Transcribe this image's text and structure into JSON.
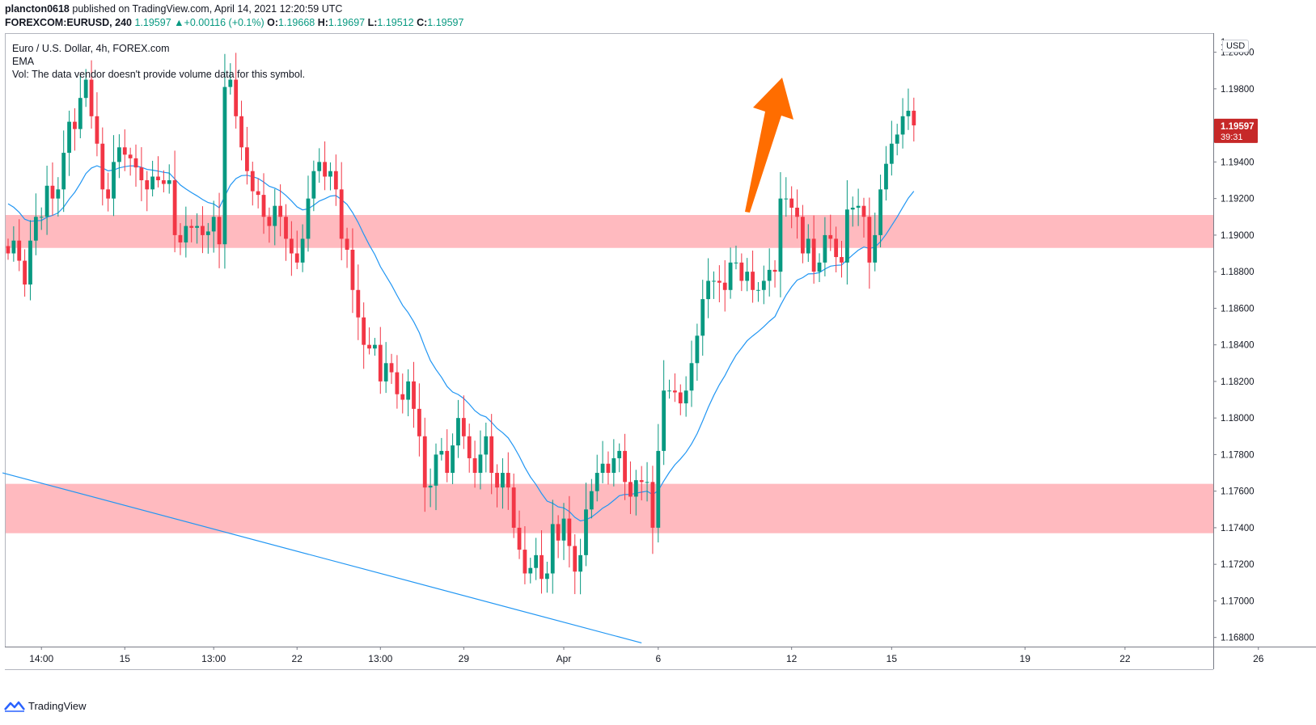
{
  "header": {
    "author": "plancton0618",
    "published_text": "published on TradingView.com, April 14, 2021 12:20:59 UTC",
    "symbol": "FOREXCOM:EURUSD, 240",
    "price": "1.19597",
    "change": "+0.00116 (+0.1%)",
    "o_label": "O:",
    "o": "1.19668",
    "h_label": "H:",
    "h": "1.19697",
    "l_label": "L:",
    "l": "1.19512",
    "c_label": "C:",
    "c": "1.19597"
  },
  "legend": {
    "title": "Euro / U.S. Dollar, 4h, FOREX.com",
    "indicator": "EMA",
    "volume_note": "Vol: The data vendor doesn't provide volume data for this symbol."
  },
  "price_axis": {
    "currency": "USD",
    "top_clipped_label": "1.",
    "last_price": "1.19597",
    "countdown": "39:31"
  },
  "footer": {
    "brand": "TradingView"
  },
  "colors": {
    "up": "#089981",
    "down": "#f23645",
    "ema": "#2196f3",
    "zone": "#ffb3b8",
    "arrow": "#ff6d00",
    "trendline": "#2196f3",
    "last_price_bg": "#c62828"
  },
  "chart_data": {
    "type": "candlestick",
    "title": "Euro / U.S. Dollar, 4h, FOREX.com",
    "ylim": [
      1.1675,
      1.201
    ],
    "y_ticks": [
      1.168,
      1.17,
      1.172,
      1.174,
      1.176,
      1.178,
      1.18,
      1.182,
      1.184,
      1.186,
      1.188,
      1.19,
      1.192,
      1.194,
      1.196,
      1.198,
      1.2
    ],
    "y_tick_labels": [
      "1.16800",
      "1.17000",
      "1.17200",
      "1.17400",
      "1.17600",
      "1.17800",
      "1.18000",
      "1.18200",
      "1.18400",
      "1.18600",
      "1.18800",
      "1.19000",
      "1.19200",
      "1.19400",
      "1.19600",
      "1.19800",
      "1.20000"
    ],
    "x_tick_labels": [
      {
        "label": "14:00",
        "bar": 6
      },
      {
        "label": "15",
        "bar": 21
      },
      {
        "label": "13:00",
        "bar": 37
      },
      {
        "label": "22",
        "bar": 52
      },
      {
        "label": "13:00",
        "bar": 67
      },
      {
        "label": "29",
        "bar": 82
      },
      {
        "label": "Apr",
        "bar": 100
      },
      {
        "label": "6",
        "bar": 117
      },
      {
        "label": "12",
        "bar": 141
      },
      {
        "label": "15",
        "bar": 159
      },
      {
        "label": "19",
        "bar": 183
      },
      {
        "label": "22",
        "bar": 201
      },
      {
        "label": "26",
        "bar": 225
      }
    ],
    "total_bar_slots": 234,
    "closes": [
      1.189,
      1.1897,
      1.1886,
      1.1873,
      1.1897,
      1.191,
      1.191,
      1.1927,
      1.192,
      1.1925,
      1.1945,
      1.1962,
      1.1958,
      1.1975,
      1.1985,
      1.1965,
      1.195,
      1.1925,
      1.192,
      1.194,
      1.1948,
      1.1944,
      1.1942,
      1.1937,
      1.193,
      1.1925,
      1.1932,
      1.193,
      1.1928,
      1.193,
      1.19,
      1.1896,
      1.1905,
      1.1904,
      1.1905,
      1.19,
      1.1902,
      1.191,
      1.1895,
      1.1981,
      1.1985,
      1.1965,
      1.1948,
      1.1935,
      1.1924,
      1.1922,
      1.191,
      1.1905,
      1.1916,
      1.191,
      1.1898,
      1.189,
      1.1885,
      1.1898,
      1.192,
      1.1935,
      1.194,
      1.1932,
      1.1935,
      1.1925,
      1.1898,
      1.1892,
      1.187,
      1.1855,
      1.184,
      1.1838,
      1.184,
      1.182,
      1.183,
      1.1825,
      1.1813,
      1.181,
      1.182,
      1.1805,
      1.179,
      1.1762,
      1.1763,
      1.178,
      1.1782,
      1.177,
      1.1785,
      1.18,
      1.179,
      1.1778,
      1.177,
      1.178,
      1.179,
      1.177,
      1.1762,
      1.177,
      1.1762,
      1.174,
      1.1728,
      1.1715,
      1.1718,
      1.1725,
      1.1712,
      1.1715,
      1.1742,
      1.1733,
      1.1745,
      1.173,
      1.1716,
      1.1725,
      1.175,
      1.176,
      1.177,
      1.1775,
      1.177,
      1.1778,
      1.1782,
      1.1765,
      1.1757,
      1.1766,
      1.1765,
      1.1765,
      1.174,
      1.1782,
      1.1815,
      1.1815,
      1.1814,
      1.1808,
      1.1815,
      1.183,
      1.1845,
      1.1865,
      1.1875,
      1.1875,
      1.1874,
      1.187,
      1.1885,
      1.1885,
      1.1875,
      1.188,
      1.187,
      1.187,
      1.1875,
      1.1881,
      1.188,
      1.192,
      1.192,
      1.1915,
      1.191,
      1.189,
      1.1898,
      1.188,
      1.1885,
      1.19,
      1.1898,
      1.1888,
      1.1885,
      1.1914,
      1.1915,
      1.1916,
      1.191,
      1.1885,
      1.19,
      1.1925,
      1.1939,
      1.195,
      1.1955,
      1.1965,
      1.1968,
      1.196
    ],
    "ema_period_note": "EMA",
    "support_zones": [
      [
        1.1893,
        1.1911
      ],
      [
        1.1737,
        1.1764
      ]
    ],
    "trendline": {
      "from": {
        "bar": -1,
        "price": 1.177
      },
      "to": {
        "bar": 114,
        "price": 1.1677
      }
    },
    "annotation": "orange arrow pointing up"
  }
}
